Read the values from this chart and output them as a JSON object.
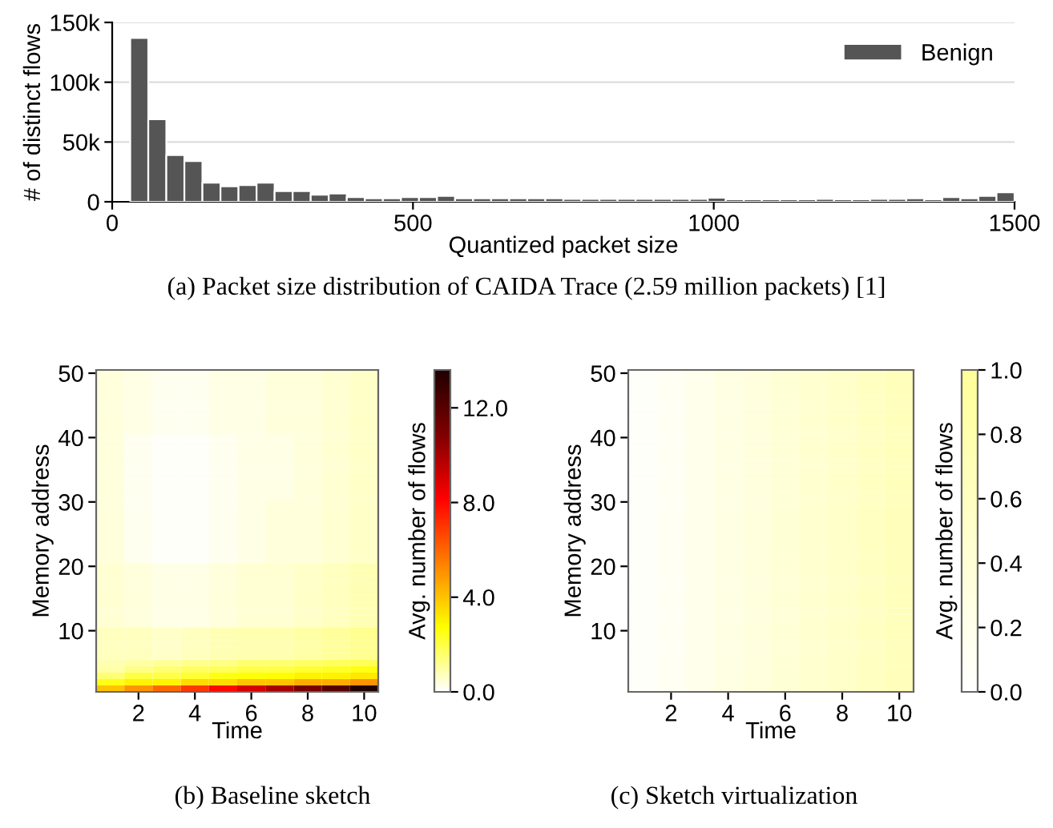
{
  "chart_data": [
    {
      "type": "histogram",
      "title": "(a) Packet size distribution of CAIDA Trace (2.59 million packets) [1]",
      "xlabel": "Quantized packet size",
      "ylabel": "# of distinct flows",
      "bins": [
        30,
        60,
        90,
        120,
        150,
        180,
        210,
        240,
        270,
        300,
        330,
        360,
        390,
        420,
        450,
        480,
        510,
        540,
        570,
        600,
        630,
        660,
        690,
        720,
        750,
        780,
        810,
        840,
        870,
        900,
        930,
        960,
        990,
        1020,
        1050,
        1080,
        1110,
        1140,
        1170,
        1200,
        1230,
        1260,
        1290,
        1320,
        1350,
        1380,
        1410,
        1440,
        1470,
        1500
      ],
      "series": [
        {
          "name": "Benign",
          "color": "#555555",
          "values": [
            137000,
            69000,
            39000,
            34000,
            16000,
            13000,
            14000,
            16000,
            9000,
            9000,
            6000,
            7000,
            4000,
            3000,
            3000,
            4000,
            4000,
            5000,
            3000,
            3000,
            3000,
            3000,
            3000,
            3000,
            2500,
            2500,
            2500,
            2500,
            2500,
            2500,
            2500,
            2500,
            3500,
            2000,
            2000,
            2000,
            2000,
            2000,
            2500,
            2000,
            2000,
            2500,
            2500,
            3000,
            2000,
            4000,
            3000,
            5000,
            8000
          ]
        }
      ],
      "xlim": [
        0,
        1500
      ],
      "xticks": [
        0,
        500,
        1000,
        1500
      ],
      "ylim": [
        0,
        150000
      ],
      "yticks": [
        {
          "value": 0,
          "label": "0"
        },
        {
          "value": 50000,
          "label": "50k"
        },
        {
          "value": 100000,
          "label": "100k"
        },
        {
          "value": 150000,
          "label": "150k"
        }
      ],
      "grid": "y",
      "legend": "top right"
    },
    {
      "type": "heatmap",
      "title": "(b) Baseline sketch",
      "xlabel": "Time",
      "ylabel": "Memory address",
      "clabel": "Avg. number of flows",
      "categories": [
        null,
        "2",
        null,
        "4",
        null,
        "6",
        null,
        "8",
        null,
        "10"
      ],
      "y_categories": [
        "50",
        null,
        null,
        null,
        null,
        null,
        null,
        null,
        null,
        null,
        "40",
        null,
        null,
        null,
        null,
        null,
        null,
        null,
        null,
        null,
        "30",
        null,
        null,
        null,
        null,
        null,
        null,
        null,
        null,
        null,
        "20",
        null,
        null,
        null,
        null,
        null,
        null,
        null,
        null,
        null,
        "10",
        null,
        null,
        null,
        null,
        null,
        null,
        null,
        null,
        null
      ],
      "colors": [
        "#ffffff",
        "#ffff00",
        "#ff8000",
        "#ff0000",
        "#800000",
        "#200000"
      ],
      "clim": [
        0,
        13.6
      ],
      "cticks": [
        {
          "value": 0,
          "label": "0.0"
        },
        {
          "value": 4,
          "label": "4.0"
        },
        {
          "value": 8,
          "label": "8.0"
        },
        {
          "value": 12,
          "label": "12.0"
        }
      ],
      "cells": [
        [
          0.4,
          0.3,
          0.2,
          0.2,
          0.3,
          0.3,
          0.4,
          0.4,
          0.5,
          0.6
        ],
        [
          0.4,
          0.3,
          0.2,
          0.2,
          0.3,
          0.3,
          0.4,
          0.4,
          0.5,
          0.6
        ],
        [
          0.4,
          0.3,
          0.2,
          0.2,
          0.3,
          0.3,
          0.4,
          0.4,
          0.5,
          0.6
        ],
        [
          0.4,
          0.3,
          0.2,
          0.2,
          0.3,
          0.3,
          0.4,
          0.4,
          0.5,
          0.6
        ],
        [
          0.4,
          0.3,
          0.2,
          0.2,
          0.3,
          0.3,
          0.4,
          0.4,
          0.5,
          0.6
        ],
        [
          0.4,
          0.3,
          0.2,
          0.2,
          0.3,
          0.3,
          0.4,
          0.4,
          0.5,
          0.6
        ],
        [
          0.4,
          0.3,
          0.2,
          0.2,
          0.3,
          0.3,
          0.4,
          0.4,
          0.5,
          0.6
        ],
        [
          0.4,
          0.3,
          0.2,
          0.2,
          0.3,
          0.3,
          0.4,
          0.4,
          0.5,
          0.6
        ],
        [
          0.4,
          0.3,
          0.2,
          0.2,
          0.3,
          0.3,
          0.4,
          0.4,
          0.5,
          0.6
        ],
        [
          0.4,
          0.3,
          0.2,
          0.2,
          0.3,
          0.3,
          0.4,
          0.4,
          0.5,
          0.6
        ],
        [
          0.4,
          0.2,
          0.1,
          0.1,
          0.2,
          0.3,
          0.3,
          0.4,
          0.5,
          0.6
        ],
        [
          0.4,
          0.2,
          0.1,
          0.1,
          0.2,
          0.3,
          0.3,
          0.4,
          0.5,
          0.6
        ],
        [
          0.4,
          0.2,
          0.1,
          0.1,
          0.2,
          0.3,
          0.3,
          0.4,
          0.5,
          0.6
        ],
        [
          0.4,
          0.2,
          0.1,
          0.1,
          0.2,
          0.3,
          0.3,
          0.4,
          0.5,
          0.6
        ],
        [
          0.4,
          0.2,
          0.1,
          0.1,
          0.2,
          0.3,
          0.3,
          0.4,
          0.5,
          0.6
        ],
        [
          0.4,
          0.2,
          0.1,
          0.1,
          0.2,
          0.3,
          0.3,
          0.4,
          0.5,
          0.6
        ],
        [
          0.4,
          0.2,
          0.1,
          0.1,
          0.2,
          0.3,
          0.3,
          0.4,
          0.5,
          0.6
        ],
        [
          0.4,
          0.2,
          0.1,
          0.1,
          0.2,
          0.3,
          0.3,
          0.4,
          0.5,
          0.6
        ],
        [
          0.4,
          0.2,
          0.1,
          0.1,
          0.2,
          0.3,
          0.3,
          0.4,
          0.5,
          0.6
        ],
        [
          0.4,
          0.2,
          0.1,
          0.1,
          0.2,
          0.3,
          0.3,
          0.4,
          0.5,
          0.6
        ],
        [
          0.4,
          0.2,
          0.1,
          0.1,
          0.2,
          0.3,
          0.4,
          0.4,
          0.5,
          0.6
        ],
        [
          0.4,
          0.2,
          0.1,
          0.1,
          0.2,
          0.3,
          0.4,
          0.4,
          0.5,
          0.6
        ],
        [
          0.4,
          0.2,
          0.1,
          0.1,
          0.2,
          0.3,
          0.4,
          0.4,
          0.5,
          0.6
        ],
        [
          0.4,
          0.2,
          0.1,
          0.1,
          0.2,
          0.3,
          0.4,
          0.4,
          0.5,
          0.6
        ],
        [
          0.4,
          0.2,
          0.1,
          0.1,
          0.2,
          0.3,
          0.4,
          0.4,
          0.5,
          0.6
        ],
        [
          0.4,
          0.2,
          0.1,
          0.1,
          0.2,
          0.3,
          0.4,
          0.4,
          0.5,
          0.6
        ],
        [
          0.4,
          0.2,
          0.1,
          0.1,
          0.2,
          0.3,
          0.4,
          0.4,
          0.5,
          0.6
        ],
        [
          0.4,
          0.2,
          0.1,
          0.1,
          0.2,
          0.3,
          0.4,
          0.4,
          0.5,
          0.6
        ],
        [
          0.4,
          0.2,
          0.1,
          0.1,
          0.2,
          0.3,
          0.4,
          0.4,
          0.5,
          0.6
        ],
        [
          0.4,
          0.2,
          0.1,
          0.1,
          0.2,
          0.3,
          0.4,
          0.4,
          0.5,
          0.6
        ],
        [
          0.5,
          0.4,
          0.3,
          0.3,
          0.4,
          0.5,
          0.5,
          0.6,
          0.7,
          0.8
        ],
        [
          0.5,
          0.4,
          0.3,
          0.3,
          0.4,
          0.5,
          0.5,
          0.6,
          0.7,
          0.8
        ],
        [
          0.5,
          0.4,
          0.3,
          0.3,
          0.4,
          0.5,
          0.5,
          0.6,
          0.7,
          0.8
        ],
        [
          0.5,
          0.4,
          0.3,
          0.3,
          0.4,
          0.5,
          0.5,
          0.6,
          0.7,
          0.8
        ],
        [
          0.5,
          0.4,
          0.3,
          0.3,
          0.4,
          0.5,
          0.5,
          0.6,
          0.7,
          0.8
        ],
        [
          0.5,
          0.4,
          0.3,
          0.3,
          0.4,
          0.5,
          0.5,
          0.6,
          0.7,
          0.8
        ],
        [
          0.5,
          0.4,
          0.3,
          0.3,
          0.4,
          0.5,
          0.5,
          0.6,
          0.7,
          0.8
        ],
        [
          0.5,
          0.4,
          0.3,
          0.3,
          0.4,
          0.5,
          0.5,
          0.6,
          0.7,
          0.8
        ],
        [
          0.5,
          0.4,
          0.3,
          0.3,
          0.4,
          0.5,
          0.5,
          0.6,
          0.7,
          0.8
        ],
        [
          0.5,
          0.4,
          0.3,
          0.3,
          0.4,
          0.5,
          0.5,
          0.6,
          0.7,
          0.8
        ],
        [
          0.7,
          0.7,
          0.6,
          0.7,
          0.8,
          0.9,
          0.9,
          1,
          1.1,
          1.2
        ],
        [
          0.7,
          0.7,
          0.6,
          0.7,
          0.8,
          0.9,
          0.9,
          1,
          1.1,
          1.2
        ],
        [
          0.7,
          0.7,
          0.6,
          0.7,
          0.8,
          0.9,
          0.9,
          1,
          1.1,
          1.2
        ],
        [
          0.7,
          0.7,
          0.6,
          0.7,
          0.8,
          0.9,
          0.9,
          1,
          1.1,
          1.2
        ],
        [
          0.7,
          0.7,
          0.6,
          0.7,
          0.8,
          0.9,
          0.9,
          1,
          1.1,
          1.2
        ],
        [
          0.8,
          1,
          1.1,
          1.2,
          1.3,
          1.5,
          1.5,
          1.6,
          1.7,
          1.8
        ],
        [
          1,
          1.3,
          1.5,
          1.7,
          1.8,
          2,
          2,
          2.2,
          2.3,
          2.5
        ],
        [
          1.5,
          2,
          2,
          2.2,
          2.5,
          2.7,
          2.8,
          3,
          3,
          3.2
        ],
        [
          2.5,
          3,
          3,
          3.5,
          3.5,
          4,
          4,
          4.5,
          4.5,
          5
        ],
        [
          4,
          5,
          6,
          7,
          8,
          9,
          10,
          11,
          12,
          13.5
        ]
      ]
    },
    {
      "type": "heatmap",
      "title": "(c) Sketch virtualization",
      "xlabel": "Time",
      "ylabel": "Memory address",
      "clabel": "Avg. number of flows",
      "categories": [
        null,
        "2",
        null,
        "4",
        null,
        "6",
        null,
        "8",
        null,
        "10"
      ],
      "y_categories": [
        "50",
        null,
        null,
        null,
        null,
        null,
        null,
        null,
        null,
        null,
        "40",
        null,
        null,
        null,
        null,
        null,
        null,
        null,
        null,
        null,
        "30",
        null,
        null,
        null,
        null,
        null,
        null,
        null,
        null,
        null,
        "20",
        null,
        null,
        null,
        null,
        null,
        null,
        null,
        null,
        null,
        "10",
        null,
        null,
        null,
        null,
        null,
        null,
        null,
        null,
        null
      ],
      "colors": [
        "#ffffff",
        "#ffff99"
      ],
      "clim": [
        0,
        1
      ],
      "cticks": [
        {
          "value": 0,
          "label": "0.0"
        },
        {
          "value": 0.2,
          "label": "0.2"
        },
        {
          "value": 0.4,
          "label": "0.4"
        },
        {
          "value": 0.6,
          "label": "0.6"
        },
        {
          "value": 0.8,
          "label": "0.8"
        },
        {
          "value": 1,
          "label": "1.0"
        }
      ],
      "cells": [
        [
          0.05,
          0.12,
          0.2,
          0.27,
          0.33,
          0.4,
          0.47,
          0.53,
          0.6,
          0.67
        ],
        [
          0.05,
          0.12,
          0.2,
          0.27,
          0.33,
          0.4,
          0.47,
          0.53,
          0.6,
          0.67
        ],
        [
          0.05,
          0.12,
          0.2,
          0.27,
          0.33,
          0.4,
          0.47,
          0.53,
          0.6,
          0.67
        ],
        [
          0.05,
          0.12,
          0.2,
          0.27,
          0.33,
          0.4,
          0.47,
          0.53,
          0.6,
          0.67
        ],
        [
          0.05,
          0.12,
          0.2,
          0.27,
          0.33,
          0.4,
          0.47,
          0.53,
          0.6,
          0.67
        ],
        [
          0.05,
          0.12,
          0.2,
          0.27,
          0.33,
          0.4,
          0.47,
          0.53,
          0.6,
          0.67
        ],
        [
          0.05,
          0.12,
          0.2,
          0.27,
          0.33,
          0.4,
          0.47,
          0.53,
          0.6,
          0.67
        ],
        [
          0.05,
          0.12,
          0.2,
          0.27,
          0.33,
          0.4,
          0.47,
          0.53,
          0.6,
          0.67
        ],
        [
          0.05,
          0.12,
          0.2,
          0.27,
          0.33,
          0.4,
          0.47,
          0.53,
          0.6,
          0.67
        ],
        [
          0.05,
          0.12,
          0.2,
          0.27,
          0.33,
          0.4,
          0.47,
          0.53,
          0.6,
          0.67
        ],
        [
          0.05,
          0.12,
          0.2,
          0.27,
          0.33,
          0.4,
          0.47,
          0.53,
          0.6,
          0.67
        ],
        [
          0.05,
          0.12,
          0.2,
          0.27,
          0.33,
          0.4,
          0.47,
          0.53,
          0.6,
          0.67
        ],
        [
          0.05,
          0.12,
          0.2,
          0.27,
          0.33,
          0.4,
          0.47,
          0.53,
          0.6,
          0.67
        ],
        [
          0.05,
          0.12,
          0.2,
          0.27,
          0.33,
          0.4,
          0.47,
          0.53,
          0.6,
          0.67
        ],
        [
          0.05,
          0.12,
          0.2,
          0.27,
          0.33,
          0.4,
          0.47,
          0.53,
          0.6,
          0.67
        ],
        [
          0.05,
          0.12,
          0.2,
          0.27,
          0.33,
          0.4,
          0.47,
          0.53,
          0.6,
          0.67
        ],
        [
          0.05,
          0.12,
          0.2,
          0.27,
          0.33,
          0.4,
          0.47,
          0.53,
          0.6,
          0.67
        ],
        [
          0.05,
          0.12,
          0.2,
          0.27,
          0.33,
          0.4,
          0.47,
          0.53,
          0.6,
          0.67
        ],
        [
          0.05,
          0.12,
          0.2,
          0.27,
          0.33,
          0.4,
          0.47,
          0.53,
          0.6,
          0.67
        ],
        [
          0.05,
          0.12,
          0.2,
          0.27,
          0.33,
          0.4,
          0.47,
          0.53,
          0.6,
          0.67
        ],
        [
          0.05,
          0.12,
          0.2,
          0.27,
          0.33,
          0.4,
          0.47,
          0.53,
          0.6,
          0.67
        ],
        [
          0.05,
          0.12,
          0.2,
          0.27,
          0.33,
          0.4,
          0.47,
          0.53,
          0.6,
          0.67
        ],
        [
          0.05,
          0.12,
          0.2,
          0.27,
          0.33,
          0.4,
          0.47,
          0.53,
          0.6,
          0.67
        ],
        [
          0.05,
          0.12,
          0.2,
          0.27,
          0.33,
          0.4,
          0.47,
          0.53,
          0.6,
          0.67
        ],
        [
          0.05,
          0.12,
          0.2,
          0.27,
          0.33,
          0.4,
          0.47,
          0.53,
          0.6,
          0.67
        ],
        [
          0.05,
          0.12,
          0.2,
          0.27,
          0.33,
          0.4,
          0.47,
          0.53,
          0.6,
          0.67
        ],
        [
          0.05,
          0.12,
          0.2,
          0.27,
          0.33,
          0.4,
          0.47,
          0.53,
          0.6,
          0.67
        ],
        [
          0.05,
          0.12,
          0.2,
          0.27,
          0.33,
          0.4,
          0.47,
          0.53,
          0.6,
          0.67
        ],
        [
          0.05,
          0.12,
          0.2,
          0.27,
          0.33,
          0.4,
          0.47,
          0.53,
          0.6,
          0.67
        ],
        [
          0.05,
          0.12,
          0.2,
          0.27,
          0.33,
          0.4,
          0.47,
          0.53,
          0.6,
          0.67
        ],
        [
          0.05,
          0.12,
          0.2,
          0.27,
          0.33,
          0.4,
          0.47,
          0.53,
          0.6,
          0.67
        ],
        [
          0.05,
          0.12,
          0.2,
          0.27,
          0.33,
          0.4,
          0.47,
          0.53,
          0.6,
          0.67
        ],
        [
          0.05,
          0.12,
          0.2,
          0.27,
          0.33,
          0.4,
          0.47,
          0.53,
          0.6,
          0.67
        ],
        [
          0.05,
          0.12,
          0.2,
          0.27,
          0.33,
          0.4,
          0.47,
          0.53,
          0.6,
          0.67
        ],
        [
          0.05,
          0.12,
          0.2,
          0.27,
          0.33,
          0.4,
          0.47,
          0.53,
          0.6,
          0.67
        ],
        [
          0.05,
          0.12,
          0.2,
          0.27,
          0.33,
          0.4,
          0.47,
          0.53,
          0.6,
          0.67
        ],
        [
          0.05,
          0.12,
          0.2,
          0.27,
          0.33,
          0.4,
          0.47,
          0.53,
          0.6,
          0.67
        ],
        [
          0.05,
          0.12,
          0.2,
          0.27,
          0.33,
          0.4,
          0.47,
          0.53,
          0.6,
          0.67
        ],
        [
          0.05,
          0.12,
          0.2,
          0.27,
          0.33,
          0.4,
          0.47,
          0.53,
          0.6,
          0.67
        ],
        [
          0.05,
          0.12,
          0.2,
          0.27,
          0.33,
          0.4,
          0.47,
          0.53,
          0.6,
          0.67
        ],
        [
          0.05,
          0.12,
          0.2,
          0.27,
          0.33,
          0.4,
          0.47,
          0.53,
          0.6,
          0.67
        ],
        [
          0.05,
          0.12,
          0.2,
          0.27,
          0.33,
          0.4,
          0.47,
          0.53,
          0.6,
          0.67
        ],
        [
          0.05,
          0.12,
          0.2,
          0.27,
          0.33,
          0.4,
          0.47,
          0.53,
          0.6,
          0.67
        ],
        [
          0.05,
          0.12,
          0.2,
          0.27,
          0.33,
          0.4,
          0.47,
          0.53,
          0.6,
          0.67
        ],
        [
          0.05,
          0.12,
          0.2,
          0.27,
          0.33,
          0.4,
          0.47,
          0.53,
          0.6,
          0.67
        ],
        [
          0.05,
          0.12,
          0.2,
          0.27,
          0.33,
          0.4,
          0.47,
          0.53,
          0.6,
          0.67
        ],
        [
          0.05,
          0.12,
          0.2,
          0.27,
          0.33,
          0.4,
          0.47,
          0.53,
          0.6,
          0.67
        ],
        [
          0.05,
          0.12,
          0.2,
          0.27,
          0.33,
          0.4,
          0.47,
          0.53,
          0.6,
          0.67
        ],
        [
          0.05,
          0.12,
          0.2,
          0.27,
          0.33,
          0.4,
          0.47,
          0.53,
          0.6,
          0.67
        ],
        [
          0.05,
          0.12,
          0.2,
          0.27,
          0.33,
          0.4,
          0.47,
          0.53,
          0.6,
          0.67
        ]
      ]
    }
  ]
}
